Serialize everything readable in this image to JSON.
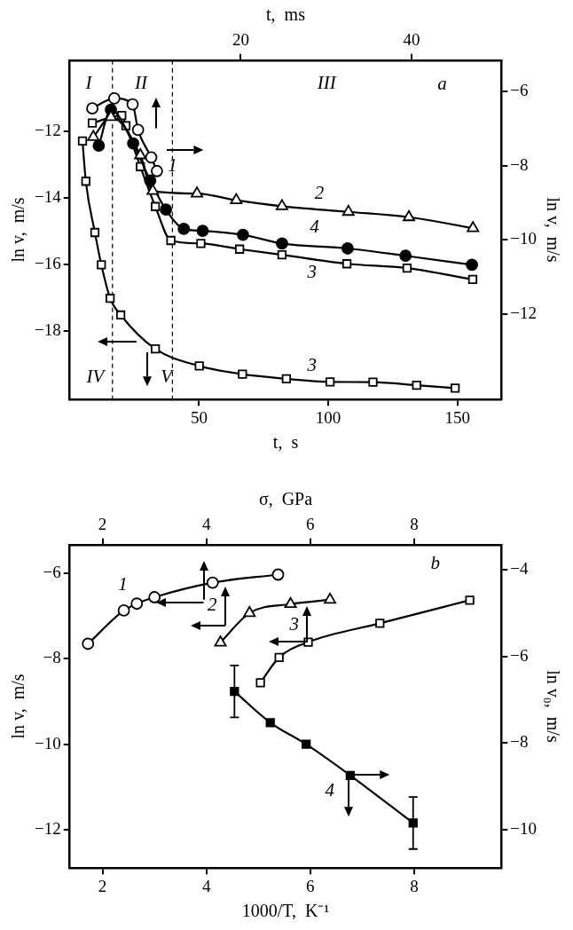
{
  "chart_data": [
    {
      "type": "line",
      "xlabel": "t,  s",
      "x2label": "t,  ms",
      "ylabel": "ln v,  m/s",
      "y2label": "ln v,  m/s",
      "xlim": [
        0,
        167
      ],
      "xticks": [
        50,
        100,
        150
      ],
      "x2lim": [
        0,
        50.5
      ],
      "x2ticks": [
        20,
        40
      ],
      "ylim": [
        -20.05,
        -9.85
      ],
      "yticks": [
        -18,
        -16,
        -14,
        -12
      ],
      "y2lim": [
        -14.3,
        -5.15
      ],
      "y2ticks": [
        -12,
        -10,
        -8,
        -6
      ],
      "grid": false,
      "legend": false,
      "series": [
        {
          "color": "#000000",
          "marker": "circle",
          "axis": "y2",
          "x": [
            8.7,
            17.2,
            24.3,
            26.4,
            31.5,
            33.7
          ],
          "values": [
            -6.45,
            -6.18,
            -6.34,
            -7.03,
            -7.77,
            -8.14
          ]
        },
        {
          "color": "#000000",
          "marker": "triangle",
          "x": [
            9.1,
            15.9,
            27.3,
            32.1,
            49.2,
            64.4,
            82.1,
            107.8,
            131.2,
            156.0
          ],
          "values": [
            -12.16,
            -11.56,
            -12.71,
            -13.78,
            -13.86,
            -14.06,
            -14.24,
            -14.41,
            -14.57,
            -14.9
          ]
        },
        {
          "color": "#000000",
          "marker": "circle",
          "x": [
            11.2,
            15.9,
            24.5,
            31.1,
            37.2,
            44.1,
            51.4,
            67.0,
            82.1,
            107.5,
            129.9,
            155.6
          ],
          "values": [
            -12.42,
            -11.34,
            -12.35,
            -13.47,
            -14.34,
            -14.92,
            -14.98,
            -15.1,
            -15.36,
            -15.51,
            -15.73,
            -16.0
          ]
        },
        {
          "color": "#000000",
          "marker": "square",
          "x": [
            8.7,
            20.1,
            21.7,
            27.3,
            33.1,
            39.1,
            50.7,
            65.7,
            82.1,
            107.2,
            130.5,
            155.9
          ],
          "values": [
            -11.74,
            -11.51,
            -11.82,
            -13.05,
            -14.25,
            -15.27,
            -15.36,
            -15.53,
            -15.7,
            -15.97,
            -16.1,
            -16.44
          ]
        },
        {
          "color": "#000000",
          "marker": "square",
          "x": [
            4.9,
            6.2,
            9.7,
            12.2,
            15.6,
            19.7,
            33.1,
            50.1,
            66.8,
            83.8,
            100.7,
            117.3,
            134.2,
            149.1
          ],
          "values": [
            -12.28,
            -13.49,
            -15.03,
            -16.0,
            -17.01,
            -17.51,
            -18.53,
            -19.04,
            -19.29,
            -19.43,
            -19.52,
            -19.53,
            -19.62,
            -19.71
          ]
        }
      ],
      "ref_lines": [
        {
          "axis": "x",
          "value": 16.5,
          "color": "#000000",
          "line_style": "dashed"
        },
        {
          "axis": "x",
          "value": 39.7,
          "color": "#000000",
          "line_style": "dashed"
        }
      ],
      "annotations": [
        "I",
        "II",
        "III",
        "a",
        "IV",
        "V",
        {
          "text": "1",
          "x": 39.7,
          "y": -13.05
        },
        "2",
        "4",
        "3",
        "3"
      ]
    },
    {
      "type": "line",
      "xlabel": "1000/T,  K⁻¹",
      "x2label": "σ,  GPa",
      "ylabel": "ln v,  m/s",
      "y2label": "ln v₀,  m/s",
      "xlim": [
        1.37,
        9.68
      ],
      "xticks": [
        2,
        4,
        6,
        8
      ],
      "x2lim": [
        1.37,
        9.68
      ],
      "x2ticks": [
        2,
        4,
        6,
        8
      ],
      "ylim": [
        -12.9,
        -5.33
      ],
      "yticks": [
        -12,
        -10,
        -8,
        -6
      ],
      "y2lim": [
        -10.89,
        -3.42
      ],
      "y2ticks": [
        -10,
        -8,
        -6,
        -4
      ],
      "grid": false,
      "legend": false,
      "series": [
        {
          "color": "#000000",
          "marker": "circle",
          "x": [
            1.72,
            2.41,
            2.66,
            3.0,
            4.12,
            5.38
          ],
          "values": [
            -7.65,
            -6.87,
            -6.71,
            -6.56,
            -6.22,
            -6.03
          ]
        },
        {
          "color": "#000000",
          "marker": "triangle",
          "x": [
            4.27,
            4.83,
            5.62,
            6.38
          ],
          "values": [
            -7.62,
            -6.93,
            -6.72,
            -6.62
          ]
        },
        {
          "color": "#000000",
          "marker": "square",
          "x": [
            5.04,
            5.4,
            5.96,
            7.34,
            9.07
          ],
          "values": [
            -8.56,
            -7.97,
            -7.61,
            -7.17,
            -6.63
          ]
        },
        {
          "color": "#000000",
          "marker": "square",
          "axis": "y2",
          "x": [
            4.54,
            5.23,
            5.92,
            6.77,
            7.98
          ],
          "values": [
            -6.81,
            -7.53,
            -8.03,
            -8.75,
            -9.85
          ],
          "errors": [
            0.6,
            null,
            null,
            null,
            0.6
          ]
        }
      ],
      "annotations": [
        "b",
        "1",
        "2",
        "3",
        "4"
      ]
    }
  ]
}
